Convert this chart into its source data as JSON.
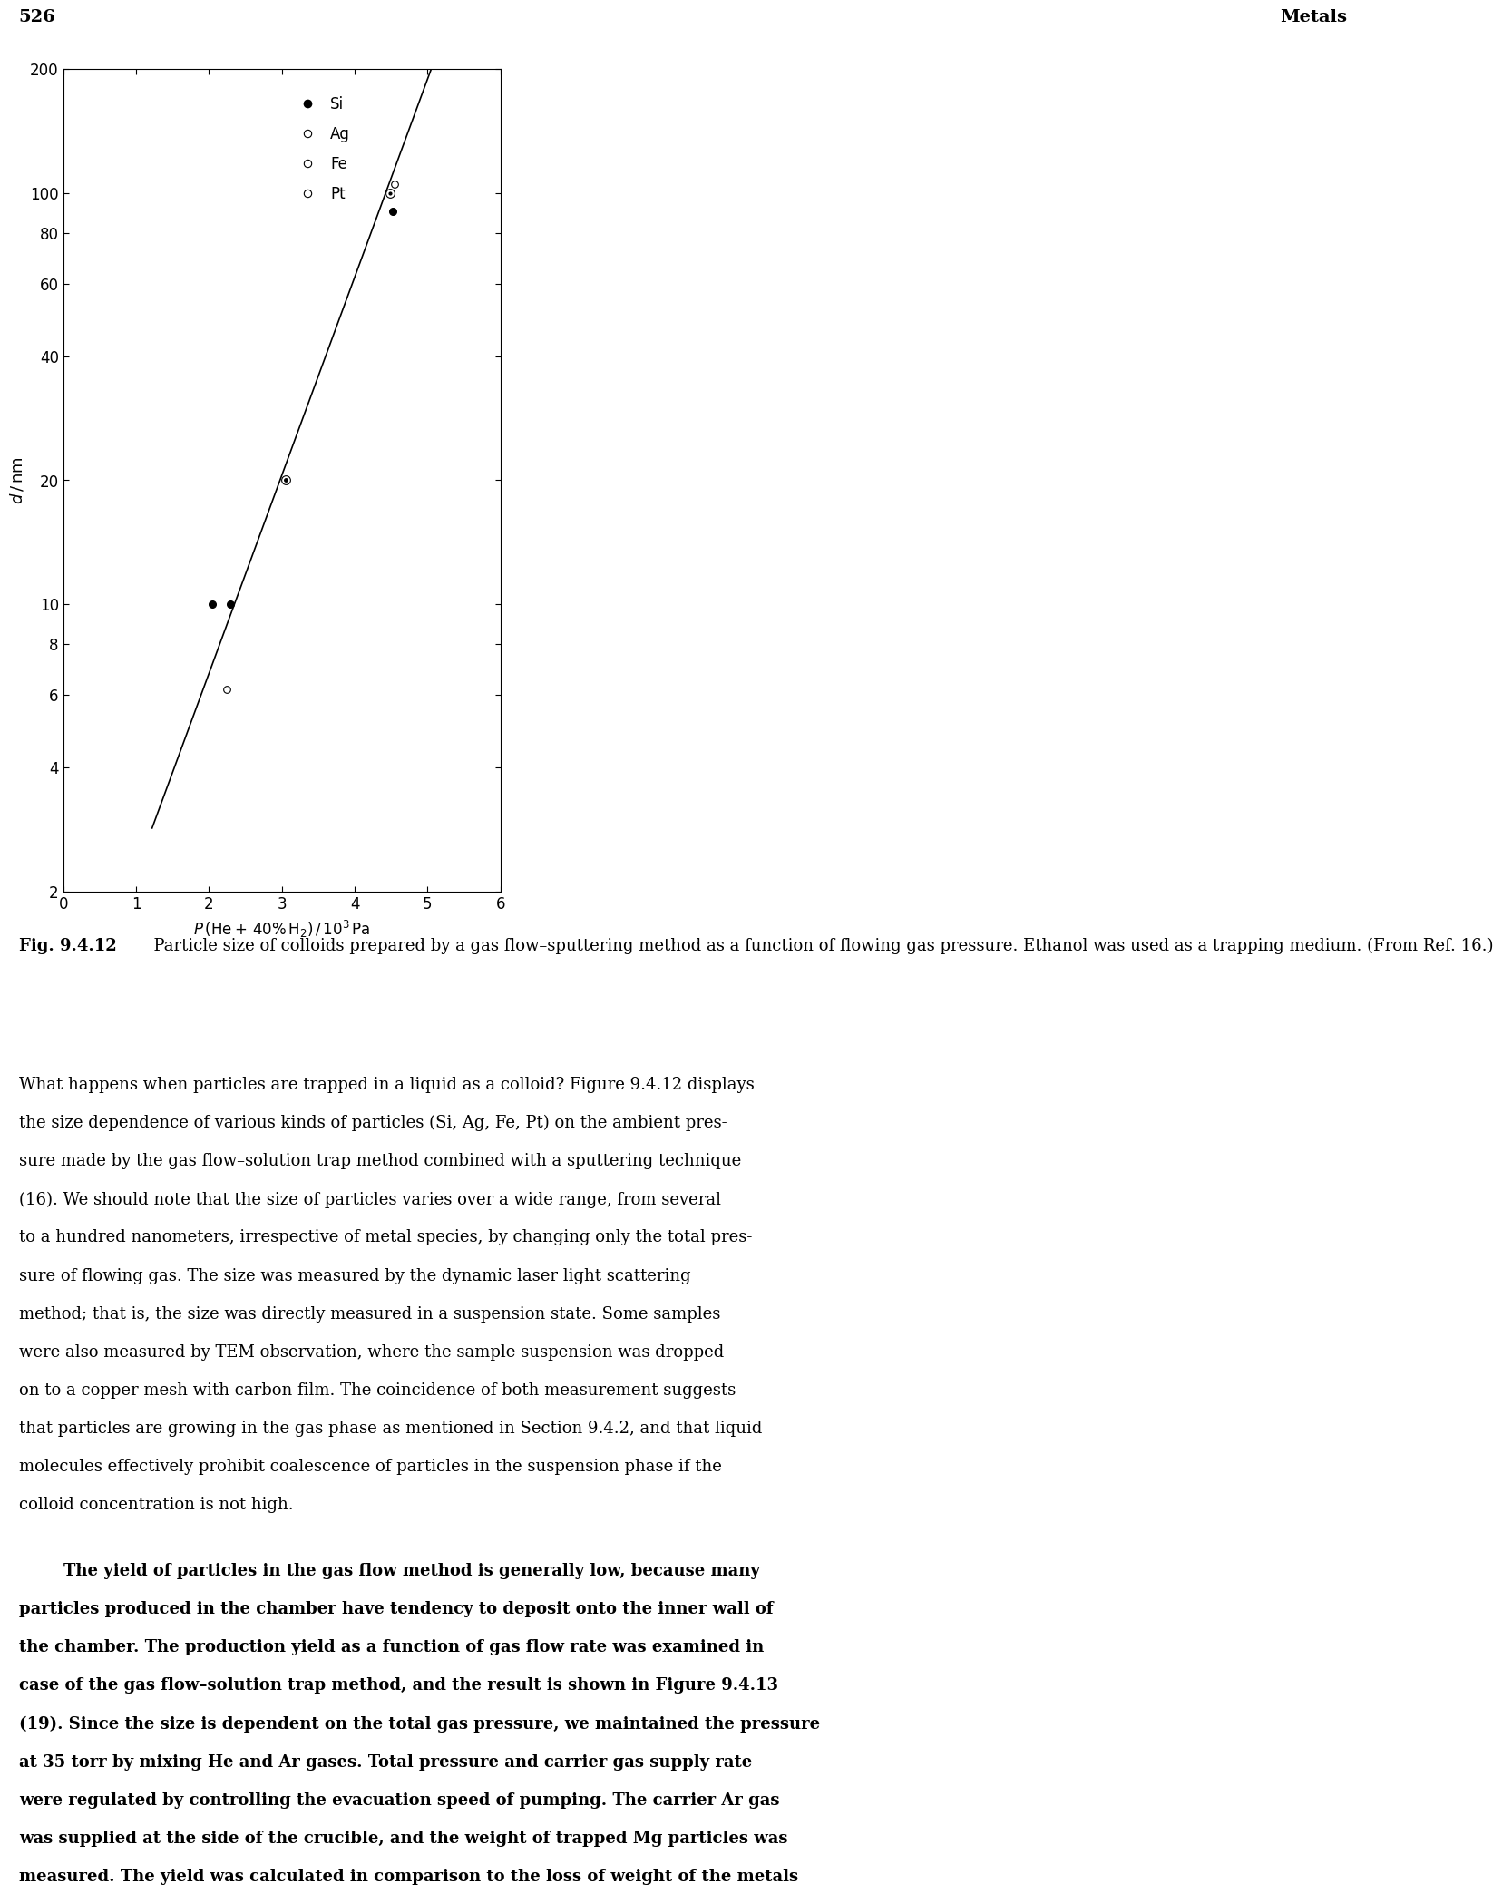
{
  "page_num": "526",
  "chapter_title": "Metals",
  "xlim": [
    0,
    6
  ],
  "ylim_log": [
    2,
    200
  ],
  "ytick_vals": [
    2,
    4,
    6,
    8,
    10,
    20,
    40,
    60,
    80,
    100,
    200
  ],
  "xtick_vals": [
    0,
    1,
    2,
    3,
    4,
    5,
    6
  ],
  "line_x": [
    1.22,
    5.05
  ],
  "line_y": [
    2.85,
    200.0
  ],
  "si_points": [
    [
      2.05,
      10.0
    ],
    [
      2.3,
      10.0
    ],
    [
      4.52,
      90.0
    ]
  ],
  "ag_points": [
    [
      2.25,
      6.2
    ],
    [
      4.55,
      105.0
    ]
  ],
  "fe_points": [
    [
      3.05,
      20.0
    ]
  ],
  "pt_points": [
    [
      4.48,
      100.0
    ]
  ],
  "caption_bold": "Fig. 9.4.12",
  "caption_rest": "  Particle size of colloids prepared by a gas flow–sputtering method as a function of flowing gas pressure. Ethanol was used as a trapping medium. (From Ref. 16.)",
  "body1_lines": [
    "What happens when particles are trapped in a liquid as a colloid? Figure 9.4.12 displays",
    "the size dependence of various kinds of particles (Si, Ag, Fe, Pt) on the ambient pres-",
    "sure made by the gas flow–solution trap method combined with a sputtering technique",
    "(16). We should note that the size of particles varies over a wide range, from several",
    "to a hundred nanometers, irrespective of metal species, by changing only the total pres-",
    "sure of flowing gas. The size was measured by the dynamic laser light scattering",
    "method; that is, the size was directly measured in a suspension state. Some samples",
    "were also measured by TEM observation, where the sample suspension was dropped",
    "on to a copper mesh with carbon film. The coincidence of both measurement suggests",
    "that particles are growing in the gas phase as mentioned in Section 9.4.2, and that liquid",
    "molecules effectively prohibit coalescence of particles in the suspension phase if the",
    "colloid concentration is not high."
  ],
  "body2_bold_first": "The yield of particles in the gas flow method is generally low, because many",
  "body2_rest_lines": [
    "particles produced in the chamber have tendency to deposit onto the inner wall of",
    "the chamber. The production yield as a function of gas flow rate was examined in",
    "case of the gas flow–solution trap method, and the result is shown in Figure 9.4.13",
    "(19). Since the size is dependent on the total gas pressure, we maintained the pressure",
    "at 35 torr by mixing He and Ar gases. Total pressure and carrier gas supply rate",
    "were regulated by controlling the evacuation speed of pumping. The carrier Ar gas",
    "was supplied at the side of the crucible, and the weight of trapped Mg particles was",
    "measured. The yield was calculated in comparison to the loss of weight of the metals"
  ]
}
